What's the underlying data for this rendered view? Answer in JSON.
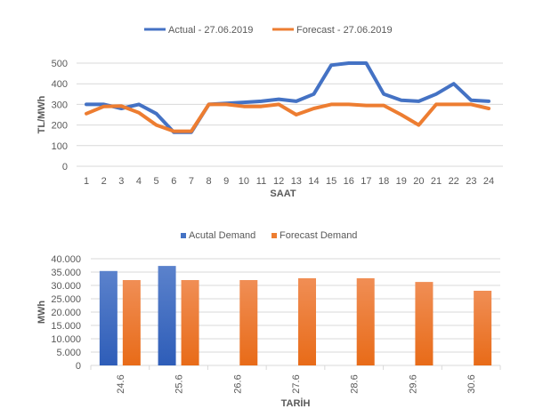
{
  "chart_data": [
    {
      "type": "line",
      "title": "",
      "xlabel": "SAAT",
      "ylabel": "TL/MWh",
      "ylim": [
        0,
        500
      ],
      "yticks": [
        "0",
        "100",
        "200",
        "300",
        "400",
        "500"
      ],
      "grid": true,
      "legend_position": "top",
      "x": [
        "1",
        "2",
        "3",
        "4",
        "5",
        "6",
        "7",
        "8",
        "9",
        "10",
        "11",
        "12",
        "13",
        "14",
        "15",
        "16",
        "17",
        "18",
        "19",
        "20",
        "21",
        "22",
        "23",
        "24"
      ],
      "series": [
        {
          "name": "Actual - 27.06.2019",
          "color": "#4472C4",
          "values": [
            300,
            300,
            280,
            300,
            255,
            165,
            165,
            300,
            305,
            310,
            315,
            325,
            315,
            350,
            490,
            500,
            500,
            350,
            320,
            315,
            350,
            400,
            320,
            315
          ]
        },
        {
          "name": "Forecast - 27.06.2019",
          "color": "#ED7D31",
          "values": [
            255,
            290,
            292,
            260,
            200,
            170,
            170,
            300,
            300,
            290,
            290,
            300,
            250,
            280,
            300,
            300,
            295,
            295,
            250,
            200,
            300,
            300,
            300,
            280
          ]
        }
      ]
    },
    {
      "type": "bar",
      "title": "",
      "xlabel": "TARİH",
      "ylabel": "MWh",
      "ylim": [
        0,
        40000
      ],
      "yticks": [
        "0",
        "5.000",
        "10.000",
        "15.000",
        "20.000",
        "25.000",
        "30.000",
        "35.000",
        "40.000"
      ],
      "grid": true,
      "legend_position": "top",
      "categories": [
        "24.6",
        "25.6",
        "26.6",
        "27.6",
        "28.6",
        "29.6",
        "30.6"
      ],
      "series": [
        {
          "name": "Acutal Demand",
          "color": "#4472C4",
          "values": [
            35400,
            37300,
            null,
            null,
            null,
            null,
            null
          ]
        },
        {
          "name": "Forecast Demand",
          "color": "#ED7D31",
          "values": [
            32000,
            32000,
            32000,
            32700,
            32700,
            31300,
            28000
          ]
        }
      ]
    }
  ]
}
